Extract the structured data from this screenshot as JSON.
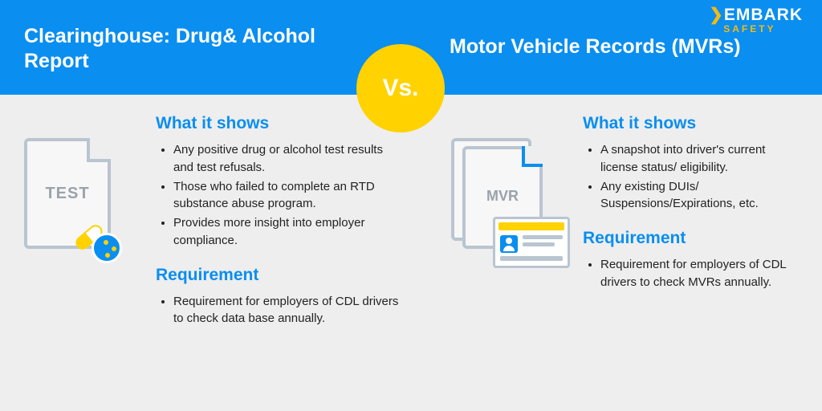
{
  "colors": {
    "header_bg": "#0a8ef0",
    "accent_yellow": "#ffd200",
    "body_bg": "#eeeeee",
    "heading_blue": "#0a8ef0",
    "icon_stroke": "#b9c5d0",
    "text": "#222222"
  },
  "logo": {
    "brand_top": "EMBARK",
    "brand_bottom": "SAFETY"
  },
  "header": {
    "left_title": "Clearinghouse: Drug& Alcohol Report",
    "right_title": "Motor Vehicle Records (MVRs)",
    "vs_label": "Vs."
  },
  "left": {
    "icon_label": "TEST",
    "shows_heading": "What it shows",
    "shows_bullets": [
      "Any positive drug or alcohol test results and test refusals.",
      "Those who failed to complete an RTD substance abuse program.",
      "Provides more insight into employer compliance."
    ],
    "req_heading": "Requirement",
    "req_bullets": [
      "Requirement for employers of CDL drivers to check data base annually."
    ]
  },
  "right": {
    "icon_label": "MVR",
    "shows_heading": "What it shows",
    "shows_bullets": [
      "A snapshot into driver's current license status/ eligibility.",
      "Any existing DUIs/ Suspensions/Expirations, etc."
    ],
    "req_heading": "Requirement",
    "req_bullets": [
      "Requirement for employers of CDL drivers to check MVRs annually."
    ]
  }
}
